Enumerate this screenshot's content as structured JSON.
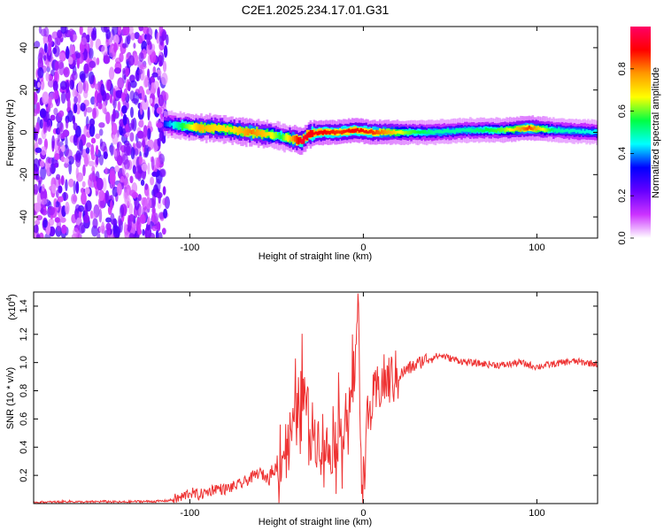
{
  "figure": {
    "title": "C2E1.2025.234.17.01.G31"
  },
  "chart_data": [
    {
      "type": "heatmap",
      "title": "C2E1.2025.234.17.01.G31",
      "xlabel": "Height of straight line (km)",
      "ylabel": "Frequency (Hz)",
      "xlim": [
        -190,
        135
      ],
      "ylim": [
        -50,
        50
      ],
      "x_ticks": [
        -100,
        0,
        100
      ],
      "y_ticks": [
        -40,
        -20,
        0,
        20,
        40
      ],
      "colorbar": {
        "label": "Normalized spectral amplitude",
        "range": [
          0,
          1
        ],
        "ticks": [
          0.0,
          0.2,
          0.4,
          0.6,
          0.8
        ],
        "colormap": [
          "#ffffff",
          "#cc33ff",
          "#6600ff",
          "#0000ff",
          "#00ffff",
          "#00ff44",
          "#ffff00",
          "#ff9900",
          "#ff0000",
          "#ff0066"
        ]
      },
      "noise_region_x": [
        -190,
        -113
      ],
      "signal_track": {
        "x": [
          -115,
          -105,
          -95,
          -85,
          -75,
          -65,
          -55,
          -48,
          -42,
          -36,
          -32,
          -25,
          -15,
          -5,
          5,
          15,
          25,
          40,
          60,
          80,
          95,
          110,
          135
        ],
        "frequency": [
          4,
          3,
          2,
          2,
          1,
          0,
          -1,
          -2,
          -3,
          -4,
          -1,
          0,
          0,
          1,
          0,
          0,
          0,
          0,
          1,
          1,
          2,
          1,
          0
        ],
        "peak_amplitude": [
          0.35,
          0.55,
          0.75,
          0.7,
          0.7,
          0.8,
          0.7,
          0.55,
          0.75,
          0.95,
          0.9,
          0.9,
          0.85,
          0.9,
          0.85,
          0.75,
          0.6,
          0.5,
          0.5,
          0.6,
          0.85,
          0.5,
          0.45
        ]
      }
    },
    {
      "type": "line",
      "xlabel": "Height of straight line (km)",
      "ylabel": "SNR (10 * v/v)",
      "y_scale_label": "(x10",
      "y_scale_exponent": "4",
      "xlim": [
        -190,
        135
      ],
      "ylim": [
        0,
        1.5
      ],
      "x_ticks": [
        -100,
        0,
        100
      ],
      "y_ticks": [
        0.2,
        0.4,
        0.6,
        0.8,
        1.0,
        1.2,
        1.4
      ],
      "series": [
        {
          "name": "SNR",
          "color": "#ee3333",
          "x": [
            -190,
            -180,
            -170,
            -160,
            -150,
            -140,
            -130,
            -120,
            -113,
            -105,
            -100,
            -95,
            -90,
            -85,
            -80,
            -75,
            -70,
            -65,
            -60,
            -55,
            -50,
            -45,
            -40,
            -36,
            -33,
            -30,
            -27,
            -24,
            -20,
            -16,
            -12,
            -8,
            -5,
            -3,
            -2,
            -1,
            0,
            2,
            5,
            10,
            15,
            20,
            25,
            30,
            35,
            40,
            45,
            50,
            60,
            70,
            80,
            90,
            100,
            110,
            120,
            135
          ],
          "values": [
            0.01,
            0.01,
            0.015,
            0.01,
            0.015,
            0.01,
            0.015,
            0.015,
            0.02,
            0.04,
            0.08,
            0.06,
            0.08,
            0.11,
            0.1,
            0.12,
            0.14,
            0.18,
            0.22,
            0.18,
            0.25,
            0.4,
            0.55,
            0.8,
            0.7,
            0.55,
            0.45,
            0.5,
            0.35,
            0.45,
            0.55,
            0.65,
            0.95,
            1.48,
            0.7,
            0.25,
            0.15,
            0.55,
            0.7,
            0.85,
            0.88,
            0.9,
            0.95,
            0.98,
            1.02,
            1.04,
            1.05,
            1.03,
            1.0,
            0.99,
            0.98,
            1.0,
            0.97,
            0.99,
            1.01,
            0.99
          ]
        }
      ]
    }
  ]
}
